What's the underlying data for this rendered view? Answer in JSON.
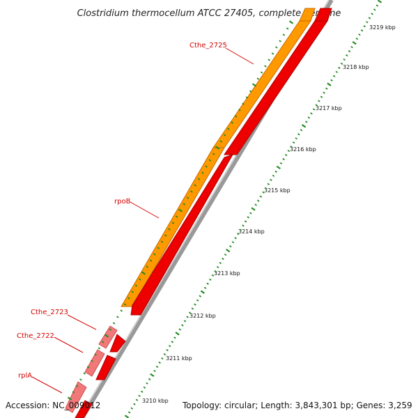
{
  "title": "Clostridium thermocellum ATCC 27405, complete genome",
  "footer": {
    "accession": "Accession: NC_009012",
    "info": "Topology: circular; Length: 3,843,301 bp; Genes: 3,259"
  },
  "gene_labels": [
    "Cthe_2725",
    "rpoB",
    "Cthe_2723",
    "Cthe_2722",
    "rplA"
  ],
  "tick_labels": [
    "3219 kbp",
    "3218 kbp",
    "3217 kbp",
    "3216 kbp",
    "3215 kbp",
    "3214 kbp",
    "3213 kbp",
    "3212 kbp",
    "3211 kbp",
    "3210 kbp"
  ],
  "colors": {
    "orange_track": "#ff9900",
    "red_track": "#ee0000",
    "pink_feature": "#f07878",
    "backbone": "#999999",
    "tick_green": "#228b22",
    "label_red": "#d40000"
  }
}
